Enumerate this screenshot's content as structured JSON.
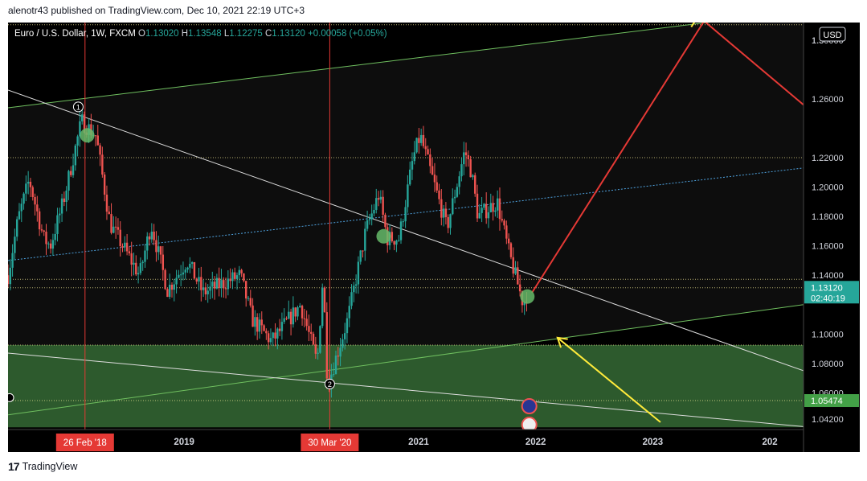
{
  "header": {
    "publisher": "alenotr43 published on TradingView.com, Dec 10, 2021 22:19 UTC+3"
  },
  "legend": {
    "symbol": "Euro / U.S. Dollar, 1W, FXCM",
    "o_label": "O",
    "o_value": "1.13020",
    "h_label": "H",
    "h_value": "1.13548",
    "l_label": "L",
    "l_value": "1.12275",
    "c_label": "C",
    "c_value": "1.13120",
    "change": "+0.00058 (+0.05%)"
  },
  "currency_button": "USD",
  "footer": {
    "brand": "TradingView"
  },
  "colors": {
    "background": "#000000",
    "up": "#26a69a",
    "down": "#ef5350",
    "zone_green": "#2d5a2d",
    "channel_line": "#6fbf5f",
    "trendline": "#dddddd",
    "projection": "#e53935",
    "arrow": "#ffeb3b",
    "date_marker": "#e53935",
    "price_tag": "#26a69a",
    "level_tag": "#43a047"
  },
  "chart_data": {
    "type": "candlestick",
    "title": "Euro / U.S. Dollar, 1W, FXCM",
    "xlabel": "",
    "ylabel": "",
    "ylim": [
      1.035,
      1.312
    ],
    "xlim": [
      "2017-07-01",
      "2024-04-15"
    ],
    "x_ticks": [
      {
        "label": "2019",
        "date": "2019-01-01"
      },
      {
        "label": "2021",
        "date": "2021-01-01"
      },
      {
        "label": "2022",
        "date": "2022-01-01"
      },
      {
        "label": "2023",
        "date": "2023-01-01"
      },
      {
        "label": "202",
        "date": "2024-01-01"
      }
    ],
    "y_ticks": [
      "1.04200",
      "1.06000",
      "1.08000",
      "1.10000",
      "1.14000",
      "1.16000",
      "1.18000",
      "1.20000",
      "1.22000",
      "1.26000",
      "1.30000",
      "1.3"
    ],
    "markers": [
      {
        "label": "26 Feb '18",
        "date": "2018-02-26"
      },
      {
        "label": "30 Mar '20",
        "date": "2020-03-30"
      }
    ],
    "price_labels": {
      "last": "1.13120",
      "countdown": "02:40:19",
      "level": "1.05474"
    },
    "price_path": [
      {
        "date": "2017-07-01",
        "price": 1.14
      },
      {
        "date": "2017-08-01",
        "price": 1.178
      },
      {
        "date": "2017-09-05",
        "price": 1.205
      },
      {
        "date": "2017-10-20",
        "price": 1.165
      },
      {
        "date": "2017-11-10",
        "price": 1.16
      },
      {
        "date": "2017-12-20",
        "price": 1.19
      },
      {
        "date": "2018-02-15",
        "price": 1.245
      },
      {
        "date": "2018-04-01",
        "price": 1.235
      },
      {
        "date": "2018-05-15",
        "price": 1.175
      },
      {
        "date": "2018-08-15",
        "price": 1.14
      },
      {
        "date": "2018-09-20",
        "price": 1.175
      },
      {
        "date": "2018-11-10",
        "price": 1.13
      },
      {
        "date": "2019-01-10",
        "price": 1.15
      },
      {
        "date": "2019-03-01",
        "price": 1.128
      },
      {
        "date": "2019-06-25",
        "price": 1.14
      },
      {
        "date": "2019-08-01",
        "price": 1.11
      },
      {
        "date": "2019-10-01",
        "price": 1.095
      },
      {
        "date": "2019-12-30",
        "price": 1.12
      },
      {
        "date": "2020-02-20",
        "price": 1.08
      },
      {
        "date": "2020-03-09",
        "price": 1.14
      },
      {
        "date": "2020-03-23",
        "price": 1.065
      },
      {
        "date": "2020-04-20",
        "price": 1.085
      },
      {
        "date": "2020-05-25",
        "price": 1.11
      },
      {
        "date": "2020-07-20",
        "price": 1.17
      },
      {
        "date": "2020-08-30",
        "price": 1.195
      },
      {
        "date": "2020-09-25",
        "price": 1.165
      },
      {
        "date": "2020-11-01",
        "price": 1.165
      },
      {
        "date": "2020-12-15",
        "price": 1.22
      },
      {
        "date": "2021-01-06",
        "price": 1.235
      },
      {
        "date": "2021-03-30",
        "price": 1.172
      },
      {
        "date": "2021-05-25",
        "price": 1.225
      },
      {
        "date": "2021-06-15",
        "price": 1.21
      },
      {
        "date": "2021-07-05",
        "price": 1.18
      },
      {
        "date": "2021-09-03",
        "price": 1.19
      },
      {
        "date": "2021-10-10",
        "price": 1.155
      },
      {
        "date": "2021-11-24",
        "price": 1.12
      },
      {
        "date": "2021-12-10",
        "price": 1.131
      }
    ],
    "horizontal_levels": [
      1.3105,
      1.22,
      1.1372,
      1.1315,
      1.0925,
      1.0547
    ],
    "zones": [
      {
        "top": 1.0925,
        "bottom": 1.0365,
        "color": "#2d5a2d"
      }
    ],
    "ascending_channel": {
      "upper": [
        {
          "date": "2017-07-01",
          "price": 1.254
        },
        {
          "date": "2024-04-15",
          "price": 1.32
        }
      ],
      "lower": [
        {
          "date": "2017-07-01",
          "price": 1.045
        },
        {
          "date": "2024-04-15",
          "price": 1.12
        }
      ],
      "mid": [
        {
          "date": "2017-07-01",
          "price": 1.15
        },
        {
          "date": "2024-04-15",
          "price": 1.213
        }
      ]
    },
    "trendlines": [
      [
        {
          "date": "2017-07-01",
          "price": 1.266
        },
        {
          "date": "2024-04-15",
          "price": 1.075
        }
      ],
      [
        {
          "date": "2017-07-01",
          "price": 1.087
        },
        {
          "date": "2024-04-15",
          "price": 1.037
        }
      ]
    ],
    "projection": [
      {
        "date": "2021-12-20",
        "price": 1.128
      },
      {
        "date": "2023-06-10",
        "price": 1.313
      },
      {
        "date": "2024-04-15",
        "price": 1.256
      }
    ],
    "arrows": [
      {
        "from": {
          "date": "2023-01-25",
          "price": 1.04
        },
        "to": {
          "date": "2022-03-10",
          "price": 1.0975
        }
      },
      {
        "from": {
          "date": "2023-05-01",
          "price": 1.309
        },
        "to": {
          "date": "2023-07-15",
          "price": 1.334
        }
      }
    ],
    "circles": [
      {
        "date": "2018-03-05",
        "price": 1.2352
      },
      {
        "date": "2020-09-14",
        "price": 1.1665
      },
      {
        "date": "2021-12-06",
        "price": 1.1255
      }
    ],
    "pivot_labels": [
      {
        "label": "1",
        "date": "2018-02-05",
        "price": 1.2546
      },
      {
        "label": "2",
        "date": "2020-03-30",
        "price": 1.066
      }
    ]
  }
}
